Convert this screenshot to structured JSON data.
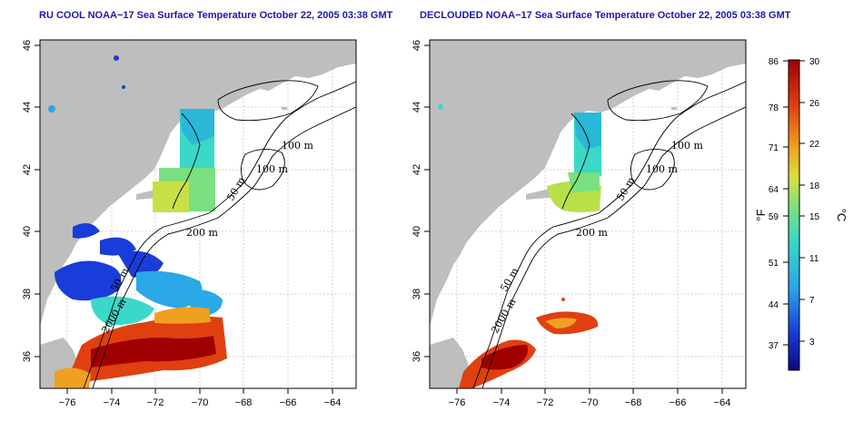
{
  "panels": [
    {
      "id": "rucool",
      "title": "RU COOL NOAA−17 Sea Surface Temperature October 22, 2005 03:38 GMT",
      "y_ticks": [
        "46",
        "44",
        "42",
        "40",
        "38",
        "36"
      ],
      "x_ticks": [
        "−76",
        "−74",
        "−72",
        "−70",
        "−68",
        "−66",
        "−64"
      ],
      "contour_labels": [
        "100 m",
        "100 m",
        "50 m",
        "200 m",
        "50 m",
        "2000 m"
      ]
    },
    {
      "id": "declouded",
      "title": "DECLOUDED NOAA−17 Sea Surface Temperature October 22, 2005 03:38 GMT",
      "y_ticks": [
        "46",
        "44",
        "42",
        "40",
        "38",
        "36"
      ],
      "x_ticks": [
        "−76",
        "−74",
        "−72",
        "−70",
        "−68",
        "−66",
        "−64"
      ],
      "contour_labels": [
        "100 m",
        "100 m",
        "50 m",
        "200 m",
        "50 m",
        "2000 m"
      ]
    }
  ],
  "colorbar": {
    "fahrenheit_ticks": [
      "86",
      "78",
      "71",
      "64",
      "59",
      "51",
      "44",
      "37"
    ],
    "celsius_ticks": [
      "30",
      "26",
      "22",
      "18",
      "15",
      "11",
      "7",
      "3"
    ],
    "fahrenheit_unit": "°F",
    "celsius_unit": "°C",
    "colors": [
      "#0a0a80",
      "#1a3cd8",
      "#2aa8e8",
      "#3ad8c8",
      "#7ae080",
      "#d8e040",
      "#f0a020",
      "#e04010",
      "#a00000"
    ]
  },
  "colors": {
    "land": "#bebebe",
    "title": "#1a1aa8",
    "grid": "#c8c8c8",
    "contour": "#000000"
  }
}
